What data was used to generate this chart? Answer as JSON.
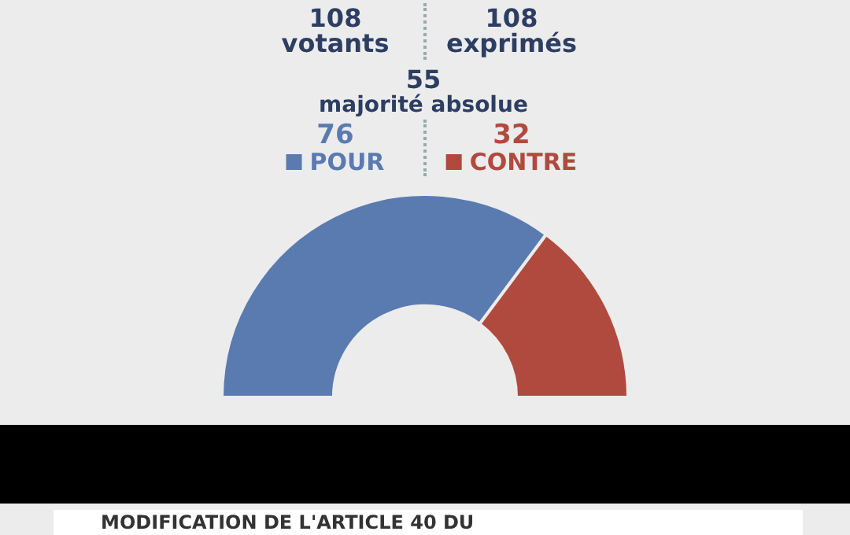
{
  "chart_data": {
    "type": "donut",
    "categories": [
      "POUR",
      "CONTRE"
    ],
    "values": [
      76,
      32
    ],
    "colors": [
      "#5a7bb0",
      "#b04a3e"
    ],
    "data_labels": true,
    "legend": "top",
    "annotations": [
      "108",
      "votants",
      "108",
      "exprimés",
      "55",
      "majorité absolue",
      "MODIFICATION DE L'ARTICLE 40 DU"
    ]
  }
}
